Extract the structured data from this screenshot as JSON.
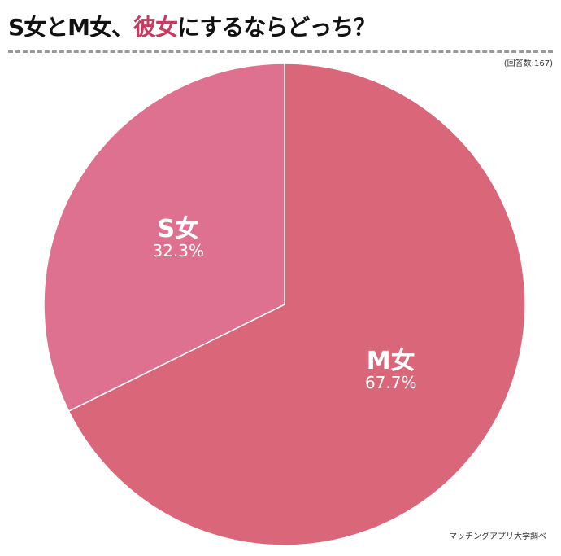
{
  "title": {
    "part1": "S女とM女、",
    "highlight": "彼女",
    "part2": "にするならどっち？"
  },
  "respondents": "(回答数:167)",
  "source": "マッチングアプリ大学調べ",
  "chart_data": {
    "type": "pie",
    "start": "top",
    "direction": "clockwise",
    "slices": [
      {
        "name": "M女",
        "value": 67.7,
        "label": "67.7%",
        "color": "#d96679"
      },
      {
        "name": "S女",
        "value": 32.3,
        "label": "32.3%",
        "color": "#de7190"
      }
    ]
  }
}
